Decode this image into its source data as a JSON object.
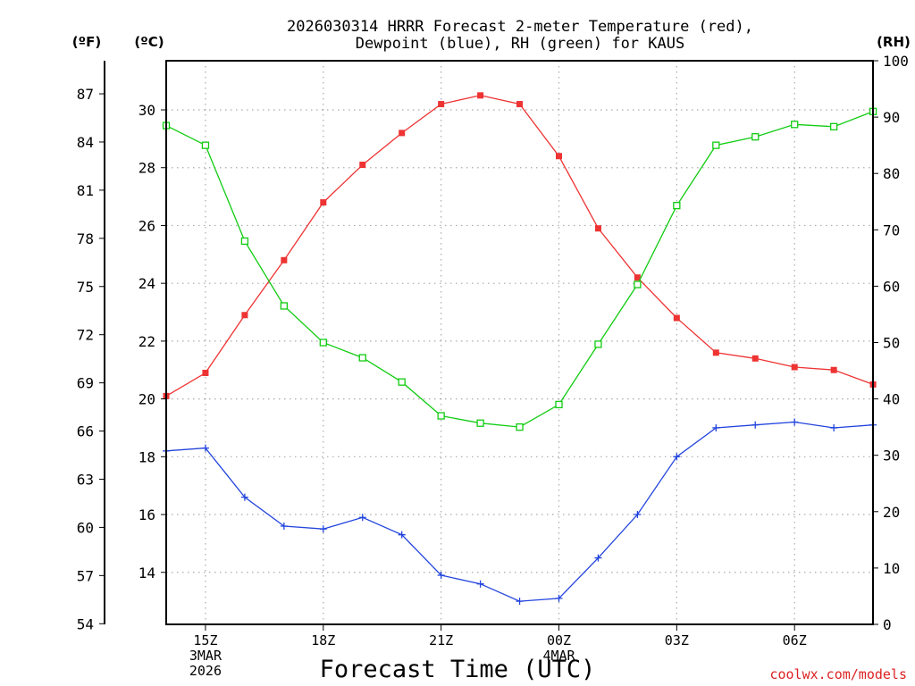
{
  "chart_data": {
    "type": "line",
    "title_line1": "2026030314 HRRR Forecast 2-meter Temperature (red),",
    "title_line2": "Dewpoint (blue), RH (green) for KAUS",
    "xlabel": "Forecast Time (UTC)",
    "credit": "coolwx.com/models",
    "units": {
      "fahrenheit": "(ºF)",
      "celsius": "(ºC)",
      "rh": "(RH)"
    },
    "colors": {
      "temperature": "#ee3333",
      "dewpoint": "#2244dd",
      "rh": "#11cc11"
    },
    "x_hours": [
      14,
      15,
      16,
      17,
      18,
      19,
      20,
      21,
      22,
      23,
      0,
      1,
      2,
      3,
      4,
      5,
      6,
      7,
      8
    ],
    "x_ticks": [
      {
        "index": 1,
        "lines": [
          "15Z",
          "3MAR",
          "2026"
        ]
      },
      {
        "index": 4,
        "lines": [
          "18Z"
        ]
      },
      {
        "index": 7,
        "lines": [
          "21Z"
        ]
      },
      {
        "index": 10,
        "lines": [
          "00Z",
          "4MAR"
        ]
      },
      {
        "index": 13,
        "lines": [
          "03Z"
        ]
      },
      {
        "index": 16,
        "lines": [
          "06Z"
        ]
      }
    ],
    "y_celsius": {
      "range": [
        12.2,
        31.7
      ],
      "ticks": [
        "14",
        "16",
        "18",
        "20",
        "22",
        "24",
        "26",
        "28",
        "30"
      ]
    },
    "y_fahrenheit": {
      "ticks": [
        "54",
        "57",
        "60",
        "63",
        "66",
        "69",
        "72",
        "75",
        "78",
        "81",
        "84",
        "87"
      ]
    },
    "y_rh": {
      "range": [
        0,
        100
      ],
      "ticks": [
        "0",
        "10",
        "20",
        "30",
        "40",
        "50",
        "60",
        "70",
        "80",
        "90",
        "100"
      ]
    },
    "series": [
      {
        "name": "2-meter Temperature",
        "unit": "C",
        "values": [
          20.1,
          20.9,
          22.9,
          24.8,
          26.8,
          28.1,
          29.2,
          30.2,
          30.5,
          30.2,
          28.4,
          25.9,
          24.2,
          22.8,
          21.6,
          21.4,
          21.1,
          21.0,
          20.5
        ]
      },
      {
        "name": "Dewpoint",
        "unit": "C",
        "values": [
          18.2,
          18.3,
          16.6,
          15.6,
          15.5,
          15.9,
          15.3,
          13.9,
          13.6,
          13.0,
          13.1,
          14.5,
          16.0,
          18.0,
          19.0,
          19.1,
          19.2,
          19.0,
          19.1
        ]
      },
      {
        "name": "RH",
        "unit": "%",
        "values": [
          88.5,
          85.0,
          68.0,
          56.5,
          50.0,
          47.3,
          43.0,
          37.0,
          35.7,
          35.0,
          39.0,
          49.7,
          60.3,
          74.3,
          85.0,
          86.5,
          88.7,
          88.3,
          91.0
        ]
      }
    ]
  }
}
